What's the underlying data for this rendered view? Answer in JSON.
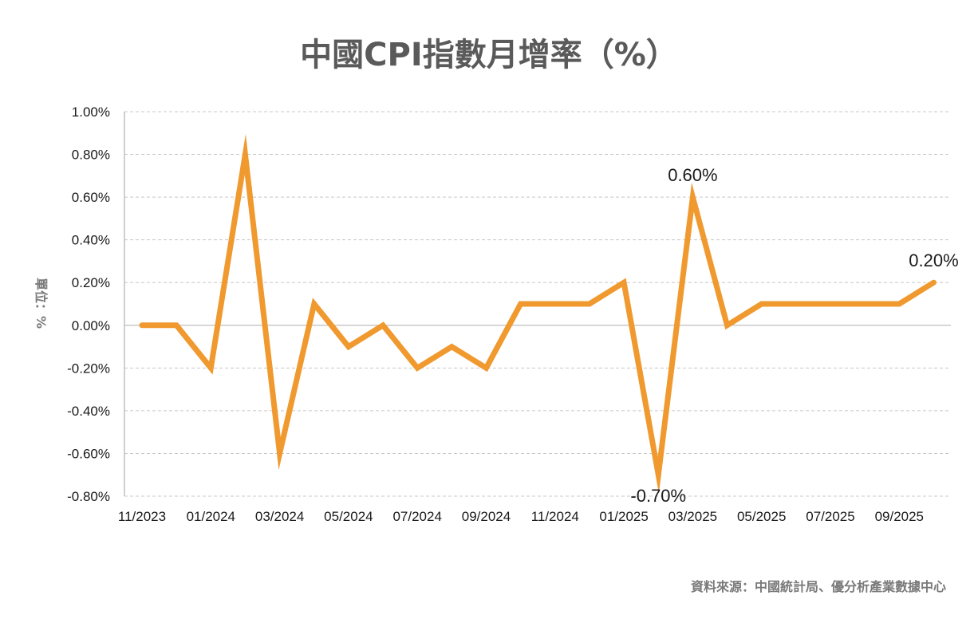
{
  "chart_data": {
    "type": "line",
    "title": "中國CPI指數月增率（%）",
    "ylabel": "單位：%",
    "source": "資料來源：中國統計局、優分析產業數據中心",
    "x_tick_labels": [
      "11/2023",
      "01/2024",
      "03/2024",
      "05/2024",
      "07/2024",
      "09/2024",
      "11/2024",
      "01/2025",
      "03/2025",
      "05/2025",
      "07/2025",
      "09/2025"
    ],
    "x": [
      "11/2023",
      "12/2023",
      "01/2024",
      "02/2024",
      "03/2024",
      "04/2024",
      "05/2024",
      "06/2024",
      "07/2024",
      "08/2024",
      "09/2024",
      "10/2024",
      "11/2024",
      "12/2024",
      "01/2025",
      "02/2025",
      "03/2025",
      "04/2025",
      "05/2025",
      "06/2025",
      "07/2025",
      "08/2025",
      "09/2025",
      "10/2025"
    ],
    "series": [
      {
        "values": [
          0.0,
          0.0,
          -0.2,
          0.8,
          -0.6,
          0.1,
          -0.1,
          0.0,
          -0.2,
          -0.1,
          -0.2,
          0.1,
          0.1,
          0.1,
          0.2,
          -0.7,
          0.6,
          0.0,
          0.1,
          0.1,
          0.1,
          0.1,
          0.1,
          0.2
        ],
        "color": "#f0992f"
      }
    ],
    "y_tick_labels": [
      "1.00%",
      "0.80%",
      "0.60%",
      "0.40%",
      "0.20%",
      "0.00%",
      "-0.20%",
      "-0.40%",
      "-0.60%",
      "-0.80%"
    ],
    "ylim": [
      -0.8,
      1.0
    ],
    "y_step": 0.2,
    "grid": true,
    "data_labels": [
      {
        "index": 16,
        "text": "0.60%"
      },
      {
        "index": 15,
        "text": "-0.70%"
      },
      {
        "index": 23,
        "text": "0.20%"
      }
    ]
  }
}
